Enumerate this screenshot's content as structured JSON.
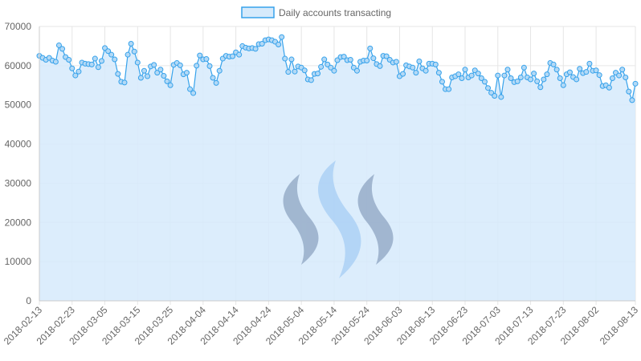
{
  "legend": {
    "label": "Daily accounts transacting"
  },
  "colors": {
    "line": "#36a2eb",
    "fill": "#d6eafb",
    "point_fill": "#b3d9f6",
    "grid": "#e6e6e6",
    "axis_text": "#666666",
    "logo_dark": "#8ea4c2",
    "logo_light": "#a6cdf5"
  },
  "watermark": {
    "icon": "steem-logo-icon"
  },
  "chart_data": {
    "type": "area",
    "y_range": [
      0,
      70000
    ],
    "y_ticks": [
      0,
      10000,
      20000,
      30000,
      40000,
      50000,
      60000,
      70000
    ],
    "x_start": "2018-02-13",
    "x_end": "2018-08-13",
    "x_tick_labels": [
      "2018-02-13",
      "2018-02-23",
      "2018-03-05",
      "2018-03-15",
      "2018-03-25",
      "2018-04-04",
      "2018-04-14",
      "2018-04-24",
      "2018-05-04",
      "2018-05-14",
      "2018-05-24",
      "2018-06-03",
      "2018-06-13",
      "2018-06-23",
      "2018-07-03",
      "2018-07-13",
      "2018-07-23",
      "2018-08-02",
      "2018-08-13"
    ],
    "grid": true,
    "legend_position": "top",
    "series": [
      {
        "name": "Daily accounts transacting",
        "values": [
          62500,
          62000,
          61500,
          62000,
          61300,
          61000,
          65200,
          64300,
          62200,
          61500,
          59300,
          57500,
          58500,
          60800,
          60500,
          60400,
          60300,
          61800,
          59600,
          61200,
          64500,
          63700,
          62800,
          61600,
          57900,
          55900,
          55700,
          62800,
          65600,
          63600,
          60800,
          56900,
          58700,
          57300,
          59800,
          60200,
          58200,
          59000,
          57400,
          56000,
          55000,
          60200,
          60700,
          60100,
          57800,
          58200,
          54000,
          53000,
          60000,
          62600,
          61600,
          61700,
          59900,
          56900,
          55600,
          58700,
          61800,
          62500,
          62300,
          62400,
          63400,
          62800,
          65000,
          64600,
          64400,
          64500,
          64300,
          65500,
          65600,
          66500,
          66700,
          66500,
          66100,
          65400,
          67300,
          61800,
          58400,
          61600,
          58500,
          59800,
          59500,
          58800,
          56500,
          56300,
          57900,
          58000,
          59700,
          61600,
          60300,
          59500,
          58700,
          61400,
          62200,
          62300,
          61400,
          61500,
          59500,
          58700,
          61000,
          61300,
          61300,
          64400,
          61900,
          60400,
          59900,
          62500,
          62400,
          61500,
          60800,
          61000,
          57300,
          57900,
          60100,
          59800,
          59500,
          58200,
          61100,
          59300,
          58700,
          60500,
          60500,
          60300,
          58200,
          55900,
          54000,
          54000,
          57000,
          57300,
          57800,
          56800,
          59000,
          57000,
          57500,
          58800,
          58000,
          56800,
          55900,
          54300,
          53100,
          52300,
          57500,
          52000,
          57500,
          59000,
          56800,
          55800,
          56000,
          57000,
          59500,
          57000,
          56500,
          58000,
          56000,
          54500,
          56500,
          57800,
          60700,
          60300,
          59000,
          56800,
          55000,
          57800,
          58300,
          57100,
          56500,
          59200,
          58100,
          58400,
          60500,
          58700,
          58800,
          57600,
          54800,
          55000,
          54400,
          56800,
          58200,
          57500,
          59000,
          57000,
          53400,
          51200,
          55400
        ]
      }
    ]
  }
}
